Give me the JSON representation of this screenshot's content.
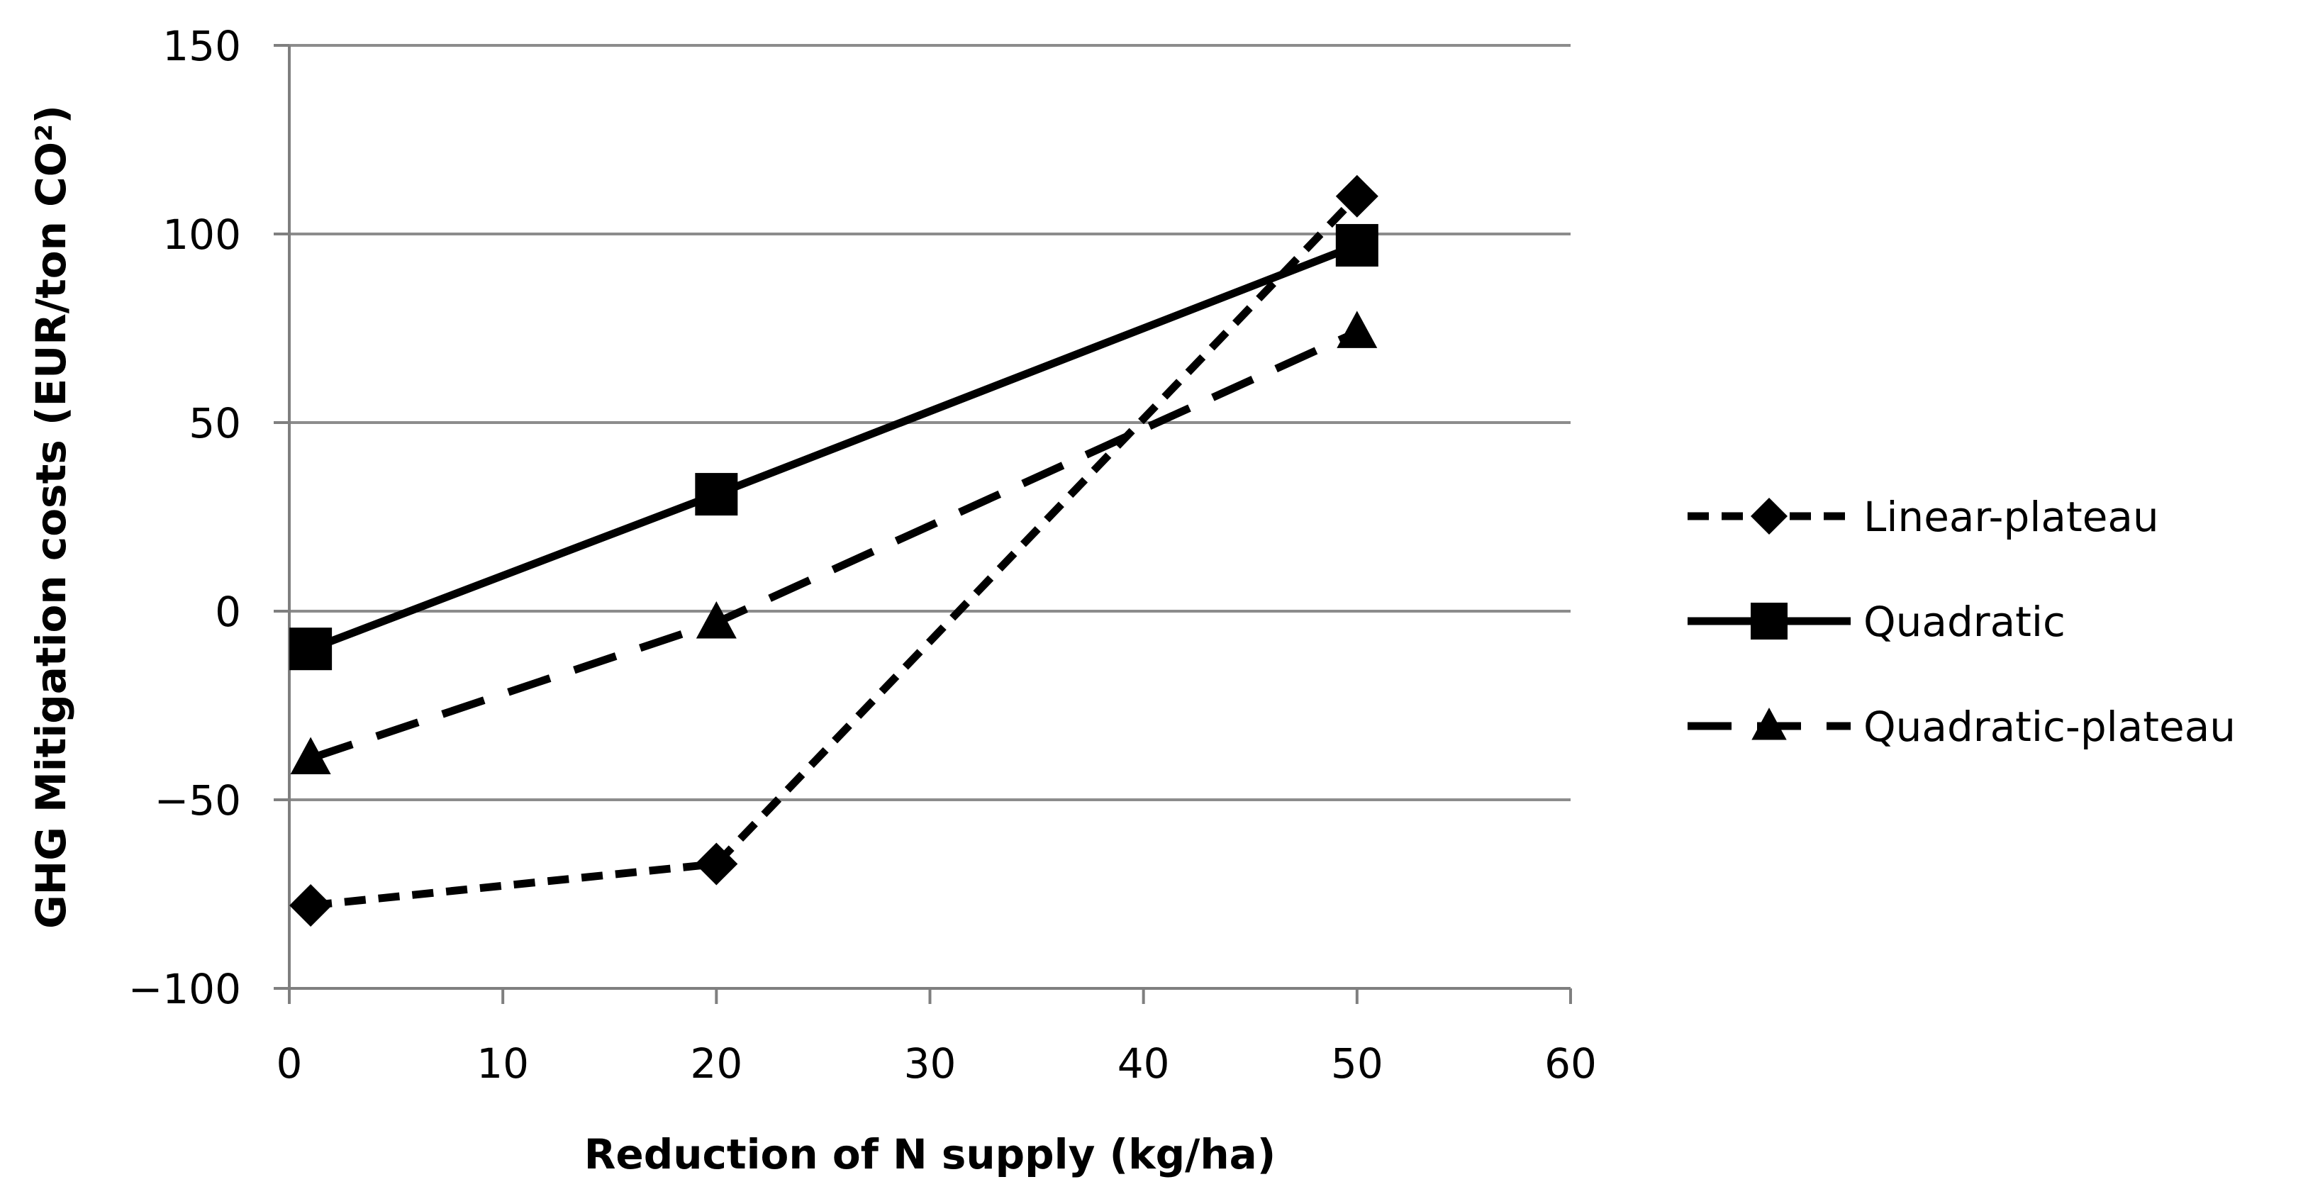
{
  "chart_data": {
    "type": "line",
    "title": "",
    "xlabel": "Reduction of N supply (kg/ha)",
    "ylabel": "GHG Mitigation  costs (EUR/ton CO²)",
    "xlim": [
      0,
      60
    ],
    "ylim": [
      -100,
      150
    ],
    "xticks": [
      0,
      10,
      20,
      30,
      40,
      50,
      60
    ],
    "yticks": [
      -100,
      -50,
      0,
      50,
      100,
      150
    ],
    "ytick_labels": [
      "−100",
      "−50",
      "0",
      "50",
      "100",
      "150"
    ],
    "grid": "horizontal",
    "legend_position": "right",
    "series": [
      {
        "name": "Linear-plateau",
        "marker": "diamond",
        "line": "short-dash",
        "x": [
          1,
          20,
          50
        ],
        "values": [
          -78,
          -67,
          110
        ]
      },
      {
        "name": "Quadratic",
        "marker": "square",
        "line": "solid",
        "x": [
          1,
          20,
          50
        ],
        "values": [
          -10,
          31,
          97
        ]
      },
      {
        "name": "Quadratic-plateau",
        "marker": "triangle",
        "line": "long-dash",
        "x": [
          1,
          20,
          50
        ],
        "values": [
          -39,
          -3,
          74
        ]
      }
    ]
  },
  "colors": {
    "line": "#000000",
    "grid": "#8c8c8c",
    "axis": "#7f7f7f"
  }
}
